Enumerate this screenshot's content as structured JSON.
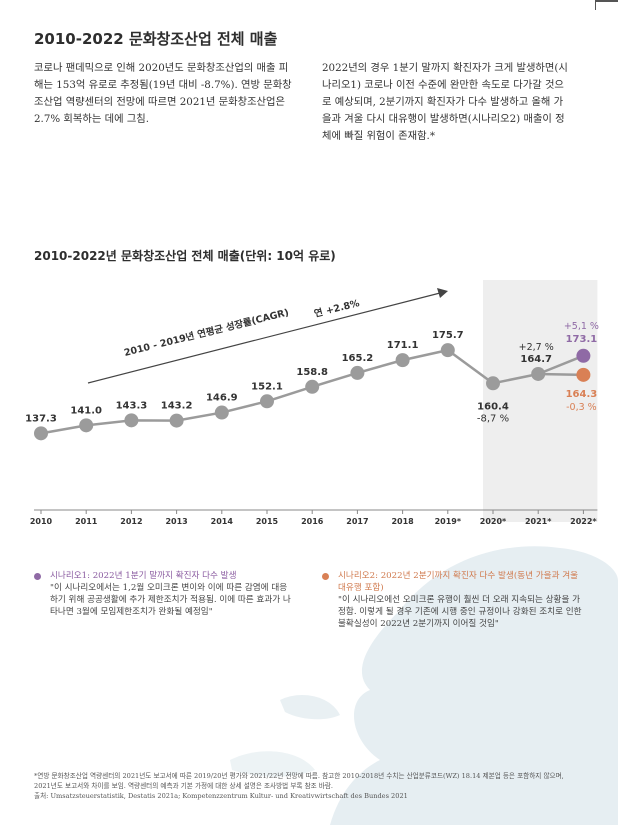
{
  "page_title": "2010-2022 문화창조산업 전체 매출",
  "intro_left": "코로나 팬데믹으로 인해 2020년도 문화창조산업의 매출 피해는 153억 유로로 추정됨(19년 대비 -8.7%). 연방 문화창조산업 역량센터의 전망에 따르면 2021년 문화창조산업은 2.7% 회복하는 데에 그침.",
  "intro_right": "2022년의 경우 1분기 말까지 확진자가 크게 발생하면(시나리오1) 코로나 이전 수준에 완만한 속도로 다가갈 것으로 예상되며, 2분기까지 확진자가 다수 발생하고 올해 가을과 겨울 다시 대유행이 발생하면(시나리오2) 매출이 정체에 빠질 위험이 존재함.*",
  "chart_title": "2010-2022년 문화창조산업 전체 매출(단위: 10억 유로)",
  "chart_data": {
    "type": "line",
    "x": [
      "2010",
      "2011",
      "2012",
      "2013",
      "2014",
      "2015",
      "2016",
      "2017",
      "2018",
      "2019*",
      "2020*",
      "2021*",
      "2022*"
    ],
    "series": [
      {
        "values": [
          137.3,
          141.0,
          143.3,
          143.2,
          146.9,
          152.1,
          158.8,
          165.2,
          171.1,
          175.7,
          160.4,
          164.7,
          null
        ]
      }
    ],
    "value_labels": [
      "137.3",
      "141.0",
      "143.3",
      "143.2",
      "146.9",
      "152.1",
      "158.8",
      "165.2",
      "171.1",
      "175.7",
      "160.4",
      "164.7",
      ""
    ],
    "scenario1": {
      "x": "2022*",
      "value": 173.1,
      "label": "173.1",
      "change": "+5,1 %",
      "color": "#8f6aa5"
    },
    "scenario2": {
      "x": "2022*",
      "value": 164.3,
      "label": "164.3",
      "change": "-0,3 %",
      "color": "#d98055"
    },
    "change_2020": "-8,7 %",
    "change_2021": "+2,7 %",
    "cagr_label": "2010 - 2019년 연평균 성장률(CAGR)",
    "cagr_value": "연 +2.8%",
    "ylim": [
      125,
      185
    ],
    "line_color": "#9b9b9b",
    "shade_color": "#eeeeee",
    "grid": false
  },
  "scenario1": {
    "title": "시나리오1: 2022년 1분기 말까지 확진자 다수 발생",
    "text": "\"이 시나리오에서는 1,2월 오미크론 변이와 이에 따른 감염에 대응하기 위해 공공생활에 추가 제한조치가 적용됨. 이에 따른 효과가 나타나면 3월에 모임제한조치가 완화될 예정임\""
  },
  "scenario2": {
    "title": "시나리오2: 2022년 2분기까지 확진자 다수 발생(동년 가을과 겨울 대유행 포함)",
    "text": "\"이 시나리오에선 오미크론 유행이 훨씬 더 오래 지속되는 상황을 가정함. 이렇게 될 경우 기존에 시행 중인 규정이나 강화된 조치로 인한 불확실성이 2022년 2분기까지 이어질 것임\""
  },
  "footnote": "*연방 문화창조산업 역량센터의 2021년도 보고서에 따른 2019/20년 평가와 2021/22년 전망에 따름. 참고한 2010-2018년 수치는 산업분류코드(WZ) 18.14 제본업 등은 포함하지 않으며, 2021년도 보고서와 차이를 보임. 역량센터의 예측과 기본 가정에 대한 상세 설명은 조사방법 부록 참조 바람.",
  "source": "출처: Umsatzsteuerstatistik, Destatis 2021a; Kompetenzzentrum Kultur- und Kreativwirtschaft des Bundes 2021"
}
